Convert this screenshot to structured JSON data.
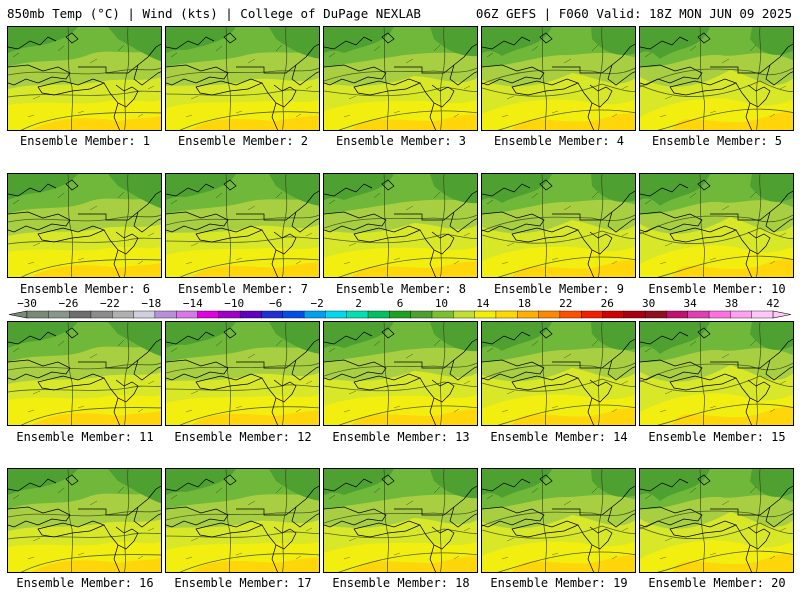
{
  "header": {
    "left": "850mb Temp (°C) | Wind (kts) | College of DuPage NEXLAB",
    "right": "06Z GEFS | F060 Valid: 18Z MON JUN 09 2025"
  },
  "panels": [
    {
      "label": "Ensemble Member: 1"
    },
    {
      "label": "Ensemble Member: 2"
    },
    {
      "label": "Ensemble Member: 3"
    },
    {
      "label": "Ensemble Member: 4"
    },
    {
      "label": "Ensemble Member: 5"
    },
    {
      "label": "Ensemble Member: 6"
    },
    {
      "label": "Ensemble Member: 7"
    },
    {
      "label": "Ensemble Member: 8"
    },
    {
      "label": "Ensemble Member: 9"
    },
    {
      "label": "Ensemble Member: 10"
    },
    {
      "label": "Ensemble Member: 11"
    },
    {
      "label": "Ensemble Member: 12"
    },
    {
      "label": "Ensemble Member: 13"
    },
    {
      "label": "Ensemble Member: 14"
    },
    {
      "label": "Ensemble Member: 15"
    },
    {
      "label": "Ensemble Member: 16"
    },
    {
      "label": "Ensemble Member: 17"
    },
    {
      "label": "Ensemble Member: 18"
    },
    {
      "label": "Ensemble Member: 19"
    },
    {
      "label": "Ensemble Member: 20"
    }
  ],
  "colorbar": {
    "ticks": [
      "−30",
      "−26",
      "−22",
      "−18",
      "−14",
      "−10",
      "−6",
      "−2",
      "2",
      "6",
      "10",
      "14",
      "18",
      "22",
      "26",
      "30",
      "34",
      "38",
      "42"
    ],
    "colors": [
      "#7a8a7a",
      "#8a968a",
      "#6e6e6e",
      "#8c8c8c",
      "#b0b0b0",
      "#cfcfe0",
      "#b890d8",
      "#d878e8",
      "#e000e0",
      "#a000c8",
      "#6000c0",
      "#2030d0",
      "#0050e8",
      "#00a0f0",
      "#00d8f0",
      "#00e0b0",
      "#00c060",
      "#20a020",
      "#4ca030",
      "#7cc030",
      "#c0e030",
      "#f0f000",
      "#ffd800",
      "#ffb000",
      "#ff8800",
      "#ff5000",
      "#f02000",
      "#d00000",
      "#a80010",
      "#901020",
      "#c01070",
      "#e040b0",
      "#ff70e0",
      "#ffa0f0",
      "#ffc8f8"
    ]
  }
}
